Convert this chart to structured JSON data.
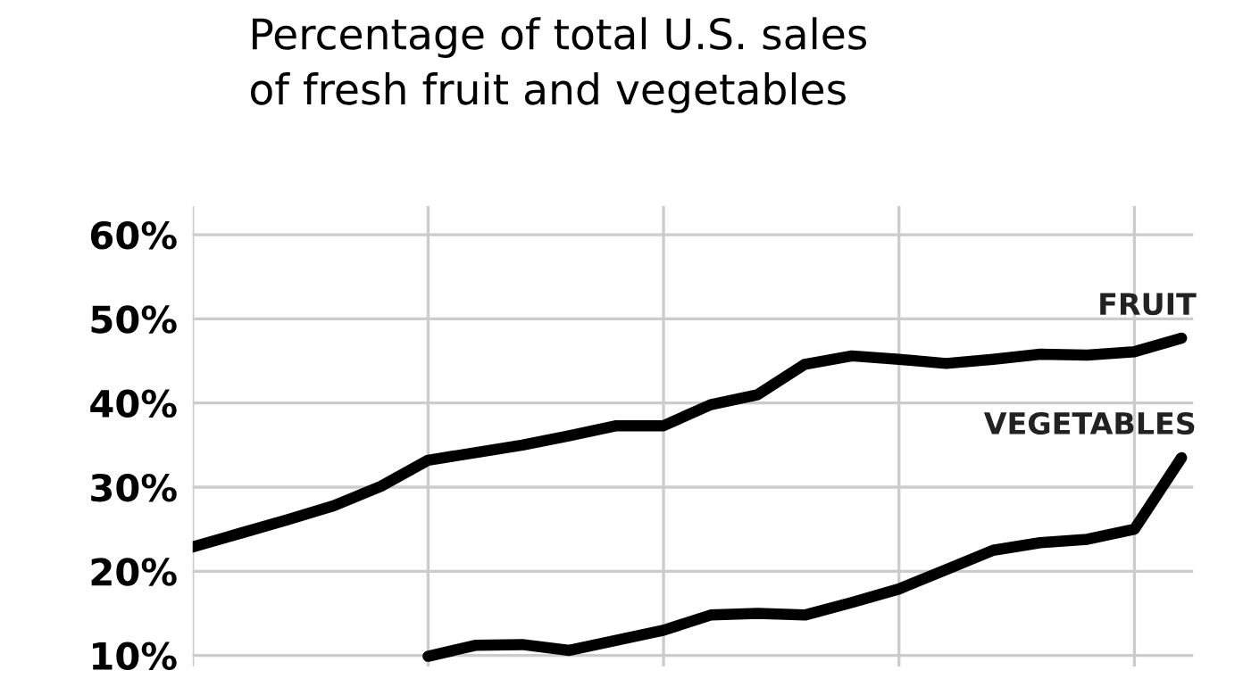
{
  "chart_data": {
    "type": "line",
    "title": "Percentage of total U.S. sales\nof fresh fruit and vegetables",
    "categories": [
      null,
      null,
      null,
      null,
      null,
      null,
      null,
      null,
      null,
      null,
      null,
      null,
      null,
      null,
      null,
      null,
      null,
      null,
      null,
      null,
      null,
      null
    ],
    "series": [
      {
        "name": "FRUIT",
        "color": "#000000",
        "values": [
          22.9,
          24.5,
          26.1,
          27.8,
          30.1,
          33.2,
          34.1,
          35.0,
          36.1,
          37.3,
          37.3,
          39.8,
          41.0,
          44.6,
          45.6,
          45.2,
          44.7,
          45.2,
          45.8,
          45.7,
          46.1,
          47.7
        ]
      },
      {
        "name": "VEGETABLES",
        "color": "#000000",
        "values": [
          null,
          null,
          null,
          null,
          null,
          9.9,
          11.2,
          11.3,
          10.6,
          11.8,
          13.0,
          14.8,
          15.0,
          14.8,
          16.3,
          17.9,
          20.2,
          22.5,
          23.4,
          23.8,
          25.0,
          33.5
        ]
      }
    ],
    "ylim": [
      8.7,
      63.4
    ],
    "yticks": [
      {
        "value": 10,
        "label": "10%"
      },
      {
        "value": 20,
        "label": "20%"
      },
      {
        "value": 30,
        "label": "30%"
      },
      {
        "value": 40,
        "label": "40%"
      },
      {
        "value": 50,
        "label": "50%"
      },
      {
        "value": 60,
        "label": "60%"
      }
    ],
    "grid": true,
    "legend": false,
    "marker": "none",
    "line_style": "solid"
  }
}
